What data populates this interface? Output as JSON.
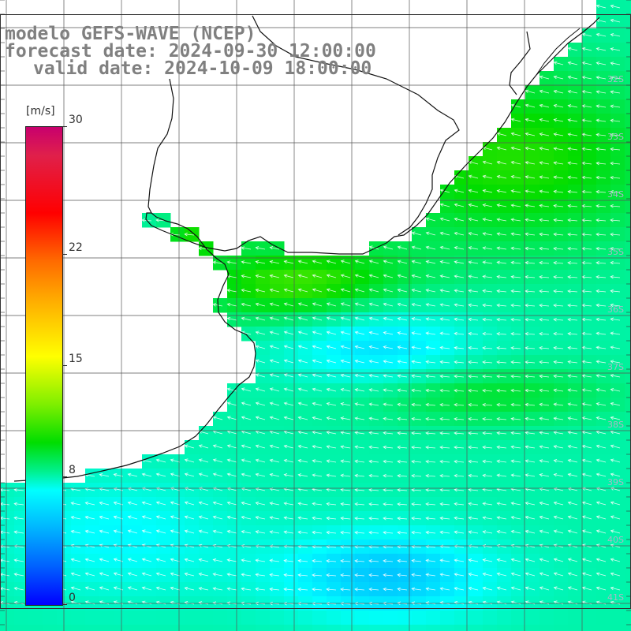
{
  "title": {
    "line1": "modelo GEFS-WAVE (NCEP)",
    "line2": "forecast date: 2024-09-30 12:00:00",
    "line3": "valid date: 2024-10-09 18:00:00"
  },
  "colorbar": {
    "unit": "[m/s]",
    "min": 0,
    "max": 30,
    "ticks": [
      {
        "value": 30,
        "label": "30"
      },
      {
        "value": 22,
        "label": "22"
      },
      {
        "value": 15,
        "label": "15"
      },
      {
        "value": 8,
        "label": "8"
      },
      {
        "value": 0,
        "label": "0"
      }
    ]
  },
  "map": {
    "lat_labels": [
      "32S",
      "33S",
      "34S",
      "35S",
      "36S",
      "37S",
      "38S",
      "39S",
      "40S",
      "41S"
    ],
    "land_color": "#ffffff",
    "grid_color": "#555555"
  }
}
